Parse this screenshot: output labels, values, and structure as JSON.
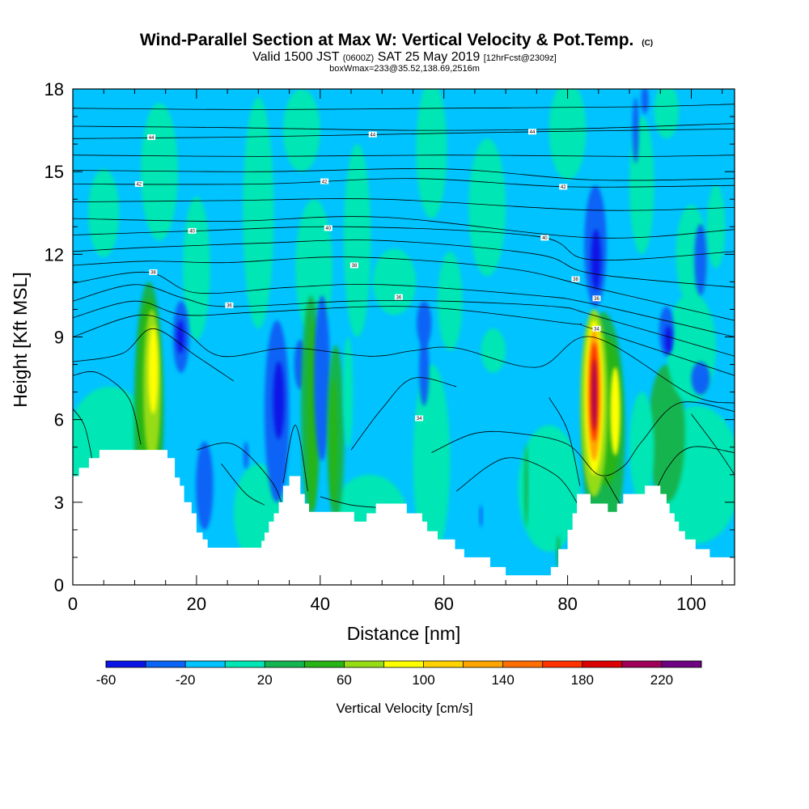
{
  "chart_data": {
    "type": "heatmap",
    "title": "Wind-Parallel Section at Max W: Vertical Velocity & Pot.Temp.",
    "title_mark": "(C)",
    "subtitle_parts": [
      "Valid 1500 JST",
      "(0600Z)",
      "SAT 25 May 2019",
      "[12hrFcst@2309z]"
    ],
    "subtitle2": "boxWmax=233@35.52,138.69,2516m",
    "xlabel": "Distance [nm]",
    "ylabel": "Height [Kft MSL]",
    "xlim": [
      0,
      107
    ],
    "ylim": [
      0,
      18
    ],
    "x_ticks": [
      0,
      20,
      40,
      60,
      80,
      100
    ],
    "y_ticks": [
      0,
      3,
      6,
      9,
      12,
      15,
      18
    ],
    "grid": false,
    "colorbar": {
      "title": "Vertical Velocity [cm/s]",
      "placement": "bottom",
      "levels": [
        -60,
        -40,
        -20,
        0,
        20,
        40,
        60,
        80,
        100,
        120,
        140,
        160,
        180,
        200,
        220,
        240
      ],
      "labels": [
        -60,
        -20,
        20,
        60,
        100,
        140,
        180,
        220
      ],
      "colors": [
        "#0a14e6",
        "#0a64f5",
        "#00c3ff",
        "#00e6b4",
        "#14b450",
        "#28b414",
        "#96dc14",
        "#ffff00",
        "#ffd200",
        "#ffa500",
        "#ff6e00",
        "#ff3200",
        "#dc0000",
        "#a0005a",
        "#6e0082"
      ]
    },
    "contour_labels": [
      {
        "value": "44",
        "x": 12.7,
        "y": 16.25
      },
      {
        "value": "44",
        "x": 48.5,
        "y": 16.35
      },
      {
        "value": "44",
        "x": 74.3,
        "y": 16.45
      },
      {
        "value": "42",
        "x": 10.7,
        "y": 14.55
      },
      {
        "value": "42",
        "x": 40.7,
        "y": 14.65
      },
      {
        "value": "42",
        "x": 79.3,
        "y": 14.45
      },
      {
        "value": "40",
        "x": 19.3,
        "y": 12.85
      },
      {
        "value": "40",
        "x": 41.3,
        "y": 12.95
      },
      {
        "value": "40",
        "x": 76.3,
        "y": 12.6
      },
      {
        "value": "38",
        "x": 13.0,
        "y": 11.35
      },
      {
        "value": "38",
        "x": 45.5,
        "y": 11.6
      },
      {
        "value": "38",
        "x": 81.3,
        "y": 11.1
      },
      {
        "value": "36",
        "x": 25.3,
        "y": 10.15
      },
      {
        "value": "36",
        "x": 52.7,
        "y": 10.45
      },
      {
        "value": "36",
        "x": 84.7,
        "y": 10.4
      },
      {
        "value": "34",
        "x": 56.0,
        "y": 6.05
      },
      {
        "value": "34",
        "x": 84.7,
        "y": 9.3
      }
    ]
  }
}
